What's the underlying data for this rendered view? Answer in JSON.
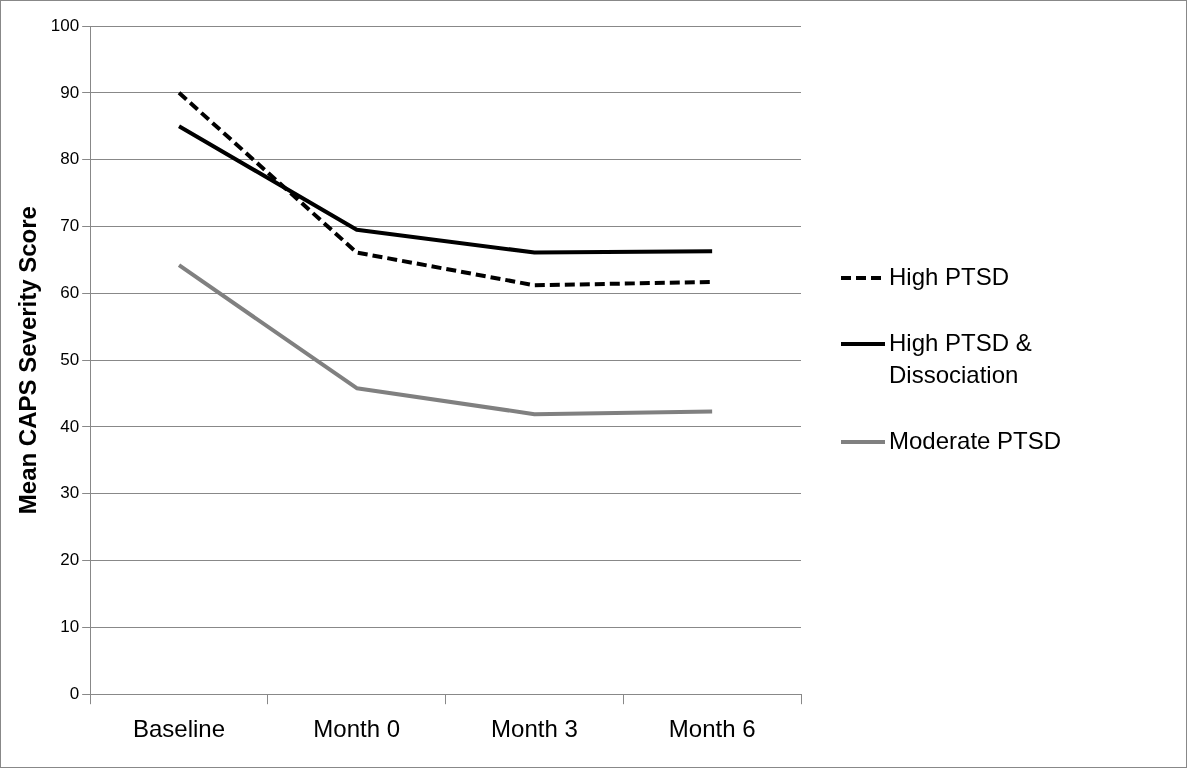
{
  "chart_data": {
    "type": "line",
    "ylabel": "Mean CAPS Severity Score",
    "categories": [
      "Baseline",
      "Month 0",
      "Month 3",
      "Month 6"
    ],
    "series": [
      {
        "name": "High PTSD",
        "color": "#000000",
        "line_style": "dashed",
        "values": [
          90,
          66.1,
          61.2,
          61.7
        ]
      },
      {
        "name": "High PTSD & Dissociation",
        "color": "#000000",
        "line_style": "solid",
        "values": [
          85,
          69.5,
          66.1,
          66.3
        ]
      },
      {
        "name": "Moderate PTSD",
        "color": "#808080",
        "line_style": "solid",
        "values": [
          64.2,
          45.8,
          41.9,
          42.3
        ]
      }
    ],
    "ylim": [
      0,
      100
    ],
    "yticks": [
      0,
      10,
      20,
      30,
      40,
      50,
      60,
      70,
      80,
      90,
      100
    ],
    "grid": "y",
    "legend": "right",
    "marker": "none"
  }
}
